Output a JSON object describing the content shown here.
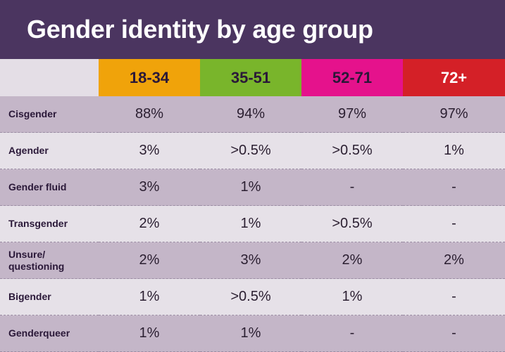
{
  "title": "Gender identity by age group",
  "colors": {
    "title_bg": "#4b3560",
    "col_18_34": "#f0a30a",
    "col_35_51": "#79b52b",
    "col_52_71": "#e5128c",
    "col_72plus": "#d42027",
    "row_dark": "#c4b6c8",
    "row_light": "#e6e1e8"
  },
  "chart_data": {
    "type": "table",
    "title": "Gender identity by age group",
    "columns": [
      "18-34",
      "35-51",
      "52-71",
      "72+"
    ],
    "column_colors": [
      "#f0a30a",
      "#79b52b",
      "#e5128c",
      "#d42027"
    ],
    "rows": [
      {
        "label": "Cisgender",
        "values": [
          "88%",
          "94%",
          "97%",
          "97%"
        ]
      },
      {
        "label": "Agender",
        "values": [
          "3%",
          ">0.5%",
          ">0.5%",
          "1%"
        ]
      },
      {
        "label": "Gender fluid",
        "values": [
          "3%",
          "1%",
          "-",
          "-"
        ]
      },
      {
        "label": "Transgender",
        "values": [
          "2%",
          "1%",
          ">0.5%",
          "-"
        ]
      },
      {
        "label": "Unsure/ questioning",
        "values": [
          "2%",
          "3%",
          "2%",
          "2%"
        ]
      },
      {
        "label": "Bigender",
        "values": [
          "1%",
          ">0.5%",
          "1%",
          "-"
        ]
      },
      {
        "label": "Genderqueer",
        "values": [
          "1%",
          "1%",
          "-",
          "-"
        ]
      }
    ]
  }
}
